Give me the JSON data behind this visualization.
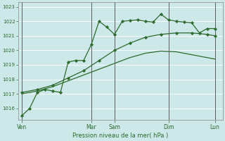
{
  "background_color": "#cce8e8",
  "grid_color": "#b8d8d8",
  "line_color": "#2d6a2d",
  "marker_color": "#2d6a2d",
  "ylabel_ticks": [
    1016,
    1017,
    1018,
    1019,
    1020,
    1021,
    1022,
    1023
  ],
  "xlabel": "Pression niveau de la mer( hPa )",
  "day_labels": [
    "Ven",
    "Mar",
    "Sam",
    "Dim",
    "Lun"
  ],
  "day_positions": [
    0,
    9,
    12,
    19,
    25
  ],
  "series1_x": [
    0,
    1,
    2,
    3,
    4,
    5,
    6,
    7,
    8,
    9,
    10,
    11,
    12,
    13,
    14,
    15,
    16,
    17,
    18,
    19,
    20,
    21,
    22,
    23,
    24,
    25
  ],
  "series1_y": [
    1015.5,
    1016.0,
    1017.1,
    1017.3,
    1017.2,
    1017.1,
    1019.2,
    1019.3,
    1019.3,
    1020.4,
    1022.0,
    1021.6,
    1021.1,
    1022.0,
    1022.05,
    1022.1,
    1022.0,
    1021.95,
    1022.5,
    1022.1,
    1022.0,
    1021.95,
    1021.9,
    1021.2,
    1021.5,
    1021.5
  ],
  "series2_x": [
    0,
    2,
    4,
    6,
    8,
    10,
    12,
    14,
    16,
    18,
    20,
    22,
    24,
    25
  ],
  "series2_y": [
    1017.1,
    1017.3,
    1017.6,
    1018.1,
    1018.6,
    1019.3,
    1020.0,
    1020.5,
    1020.9,
    1021.1,
    1021.2,
    1021.2,
    1021.1,
    1021.0
  ],
  "series3_x": [
    0,
    2,
    4,
    6,
    8,
    10,
    12,
    14,
    16,
    18,
    20,
    22,
    24,
    25
  ],
  "series3_y": [
    1017.0,
    1017.2,
    1017.5,
    1017.9,
    1018.3,
    1018.7,
    1019.1,
    1019.5,
    1019.8,
    1019.95,
    1019.9,
    1019.7,
    1019.5,
    1019.4
  ],
  "series1_markers_x": [
    0,
    1,
    2,
    3,
    4,
    5,
    6,
    7,
    8,
    9,
    10,
    11,
    12,
    13,
    14,
    15,
    16,
    17,
    18,
    19,
    20,
    21,
    22,
    23,
    24,
    25
  ],
  "series2_markers_x": [
    0,
    2,
    4,
    6,
    8,
    10,
    12,
    14,
    16,
    18,
    20,
    22,
    24,
    25
  ],
  "ylim_min": 1015.2,
  "ylim_max": 1023.3,
  "xlim_min": -0.5,
  "xlim_max": 26.0
}
